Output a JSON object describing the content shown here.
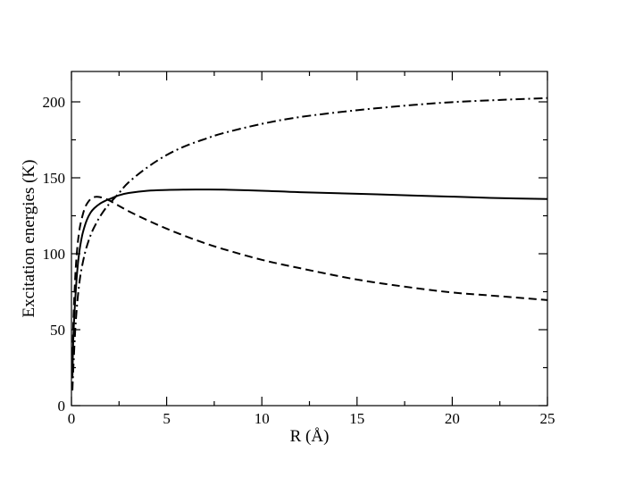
{
  "chart_data": {
    "type": "line",
    "title": "",
    "xlabel": "R (Å)",
    "ylabel": "Excitation energies  (K)",
    "xlim": [
      0,
      25
    ],
    "ylim": [
      0,
      220
    ],
    "x_ticks": [
      0,
      5,
      10,
      15,
      20,
      25
    ],
    "y_ticks": [
      0,
      50,
      100,
      150,
      200
    ],
    "x_minor_step": 2.5,
    "y_minor_step": 25,
    "grid": false,
    "legend": "none",
    "series": [
      {
        "style": "solid",
        "color": "#000000",
        "x": [
          0.05,
          0.1,
          0.2,
          0.3,
          0.4,
          0.5,
          0.6,
          0.8,
          1.0,
          1.2,
          1.5,
          1.8,
          2.0,
          2.5,
          3.0,
          4.0,
          5.0,
          6.0,
          7.0,
          8.0,
          10.0,
          12.0,
          15.0,
          18.0,
          20.0,
          22.0,
          25.0
        ],
        "values": [
          18,
          45,
          70,
          88,
          100,
          108,
          114,
          122,
          127,
          130,
          133,
          135,
          136,
          138.5,
          140,
          141.5,
          142,
          142.2,
          142.3,
          142.2,
          141.5,
          140.5,
          139.5,
          138.3,
          137.6,
          136.8,
          136
        ]
      },
      {
        "style": "dashed",
        "color": "#000000",
        "x": [
          0.05,
          0.1,
          0.2,
          0.3,
          0.4,
          0.5,
          0.7,
          0.9,
          1.1,
          1.3,
          1.5,
          1.8,
          2.0,
          2.5,
          3.0,
          4.0,
          5.0,
          6.0,
          7.0,
          8.0,
          10.0,
          12.0,
          15.0,
          18.0,
          20.0,
          22.0,
          25.0
        ],
        "values": [
          25,
          55,
          85,
          103,
          114,
          121,
          130,
          134.5,
          136.8,
          137.5,
          137.3,
          136.2,
          135,
          131.5,
          128,
          122,
          116.5,
          111.5,
          107,
          103,
          96,
          90.5,
          83,
          77.5,
          74.5,
          72.5,
          69.5
        ]
      },
      {
        "style": "dashdot",
        "color": "#000000",
        "x": [
          0.05,
          0.1,
          0.2,
          0.3,
          0.4,
          0.5,
          0.7,
          0.9,
          1.1,
          1.3,
          1.5,
          1.8,
          2.0,
          2.5,
          3.0,
          4.0,
          5.0,
          6.0,
          7.0,
          8.0,
          10.0,
          12.0,
          15.0,
          18.0,
          20.0,
          22.0,
          25.0
        ],
        "values": [
          10,
          25,
          50,
          67,
          79,
          88,
          100,
          108.5,
          115,
          120,
          124.5,
          130,
          133,
          140,
          147,
          157,
          165,
          171,
          175.5,
          179.5,
          185.5,
          190,
          194.5,
          198,
          199.8,
          201,
          202.5
        ]
      }
    ]
  }
}
